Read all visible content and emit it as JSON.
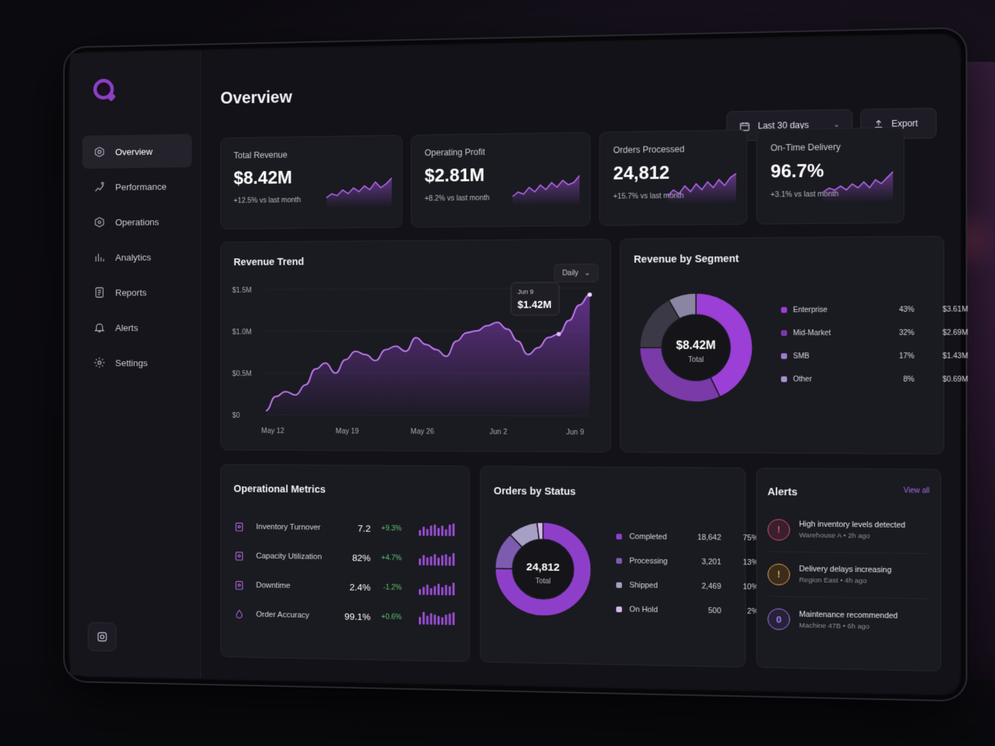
{
  "colors": {
    "accent": "#9b4fd6",
    "accent_light": "#c07aee",
    "positive": "#58c46a",
    "warning": "#e0a64a",
    "danger": "#d9507a"
  },
  "page": {
    "title": "Overview"
  },
  "sidebar": {
    "items": [
      {
        "label": "Overview",
        "icon": "overview-icon",
        "active": true
      },
      {
        "label": "Performance",
        "icon": "performance-icon"
      },
      {
        "label": "Operations",
        "icon": "operations-icon"
      },
      {
        "label": "Analytics",
        "icon": "analytics-icon"
      },
      {
        "label": "Reports",
        "icon": "reports-icon"
      },
      {
        "label": "Alerts",
        "icon": "bell-icon"
      },
      {
        "label": "Settings",
        "icon": "gear-icon"
      }
    ]
  },
  "toolbar": {
    "range_label": "Last 30 days",
    "export_label": "Export"
  },
  "kpis": [
    {
      "title": "Total Revenue",
      "value": "$8.42M",
      "delta": "+12.5% vs last month",
      "spark": [
        4,
        6,
        5,
        8,
        6,
        9,
        7,
        10,
        8,
        12,
        9,
        11,
        14
      ]
    },
    {
      "title": "Operating Profit",
      "value": "$2.81M",
      "delta": "+8.2% vs last month",
      "spark": [
        3,
        5,
        4,
        7,
        5,
        8,
        6,
        9,
        7,
        10,
        8,
        9,
        12
      ]
    },
    {
      "title": "Orders Processed",
      "value": "24,812",
      "delta": "+15.7% vs last month",
      "spark": [
        3,
        6,
        4,
        8,
        5,
        9,
        6,
        10,
        7,
        11,
        8,
        12,
        14
      ]
    },
    {
      "title": "On-Time Delivery",
      "value": "96.7%",
      "delta": "+3.1% vs last month",
      "spark": [
        4,
        6,
        5,
        7,
        5,
        8,
        6,
        9,
        6,
        10,
        8,
        11,
        14
      ]
    }
  ],
  "revenue_trend": {
    "title": "Revenue Trend",
    "interval": "Daily",
    "tooltip": {
      "date": "Jun 9",
      "value": "$1.42M"
    },
    "chart_data": {
      "type": "area",
      "ylim": [
        0,
        1.5
      ],
      "yticks": [
        "$0",
        "$0.5M",
        "$1.0M",
        "$1.5M"
      ],
      "xticks": [
        "May 12",
        "May 19",
        "May 26",
        "Jun 2",
        "Jun 9"
      ],
      "values": [
        0.05,
        0.22,
        0.28,
        0.24,
        0.36,
        0.55,
        0.62,
        0.5,
        0.66,
        0.76,
        0.72,
        0.65,
        0.78,
        0.82,
        0.76,
        0.92,
        0.84,
        0.78,
        0.7,
        0.88,
        0.98,
        1.0,
        1.06,
        1.1,
        1.02,
        0.88,
        0.72,
        0.8,
        0.92,
        0.96,
        1.12,
        1.3,
        1.42
      ]
    }
  },
  "segments": {
    "title": "Revenue by Segment",
    "total_value": "$8.42M",
    "total_label": "Total",
    "chart_data": {
      "type": "pie",
      "items": [
        {
          "name": "Enterprise",
          "pct": "43%",
          "amount": "$3.61M",
          "value": 43,
          "color": "#9b3fd6"
        },
        {
          "name": "Mid-Market",
          "pct": "32%",
          "amount": "$2.69M",
          "value": 32,
          "color": "#7a3aa8"
        },
        {
          "name": "SMB",
          "pct": "17%",
          "amount": "$1.43M",
          "value": 17,
          "color": "#3b3946"
        },
        {
          "name": "Other",
          "pct": "8%",
          "amount": "$0.69M",
          "value": 8,
          "color": "#8a85a2"
        }
      ]
    }
  },
  "ops_metrics": {
    "title": "Operational Metrics",
    "rows": [
      {
        "name": "Inventory Turnover",
        "value": "7.2",
        "delta": "+9.3%",
        "bars": [
          5,
          8,
          6,
          9,
          10,
          7,
          9,
          6,
          10,
          11
        ]
      },
      {
        "name": "Capacity Utilization",
        "value": "82%",
        "delta": "+4.7%",
        "bars": [
          6,
          9,
          7,
          8,
          10,
          7,
          9,
          10,
          8,
          11
        ]
      },
      {
        "name": "Downtime",
        "value": "2.4%",
        "delta": "-1.2%",
        "bars": [
          5,
          7,
          9,
          6,
          8,
          10,
          7,
          9,
          8,
          11
        ]
      },
      {
        "name": "Order Accuracy",
        "value": "99.1%",
        "delta": "+0.6%",
        "bars": [
          6,
          10,
          7,
          9,
          8,
          7,
          6,
          8,
          9,
          10
        ]
      }
    ]
  },
  "orders_status": {
    "title": "Orders by Status",
    "total_value": "24,812",
    "total_label": "Total",
    "chart_data": {
      "type": "pie",
      "items": [
        {
          "name": "Completed",
          "count": "18,642",
          "pct": "75%",
          "value": 75,
          "color": "#8e3fc9"
        },
        {
          "name": "Processing",
          "count": "3,201",
          "pct": "13%",
          "value": 13,
          "color": "#7d5cb0"
        },
        {
          "name": "Shipped",
          "count": "2,469",
          "pct": "10%",
          "value": 10,
          "color": "#a79fc4"
        },
        {
          "name": "On Hold",
          "count": "500",
          "pct": "2%",
          "value": 2,
          "color": "#d7b6ee"
        }
      ]
    }
  },
  "alerts": {
    "title": "Alerts",
    "view_all": "View all",
    "items": [
      {
        "title": "High inventory levels detected",
        "sub": "Warehouse A • 2h ago",
        "glyph": "!",
        "color": "#d9507a",
        "bg": "#3a1f2c",
        "icon": "warning-triangle-icon"
      },
      {
        "title": "Delivery delays increasing",
        "sub": "Region East • 4h ago",
        "glyph": "!",
        "color": "#e0a64a",
        "bg": "#3b2c1c",
        "icon": "warning-triangle-icon"
      },
      {
        "title": "Maintenance recommended",
        "sub": "Machine 47B • 6h ago",
        "glyph": "0",
        "color": "#a87ae8",
        "bg": "#27213a",
        "icon": "maintenance-icon"
      }
    ]
  }
}
